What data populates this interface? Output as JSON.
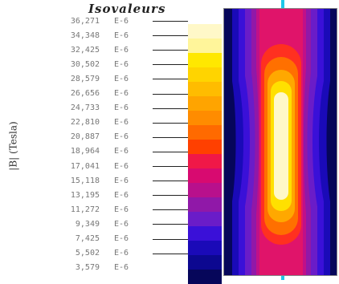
{
  "title": "Isovaleurs",
  "axis_label": "|B| (Tesla)",
  "legend": [
    {
      "value": "36,271",
      "exp": "E-6"
    },
    {
      "value": "34,348",
      "exp": "E-6"
    },
    {
      "value": "32,425",
      "exp": "E-6"
    },
    {
      "value": "30,502",
      "exp": "E-6"
    },
    {
      "value": "28,579",
      "exp": "E-6"
    },
    {
      "value": "26,656",
      "exp": "E-6"
    },
    {
      "value": "24,733",
      "exp": "E-6"
    },
    {
      "value": "22,810",
      "exp": "E-6"
    },
    {
      "value": "20,887",
      "exp": "E-6"
    },
    {
      "value": "18,964",
      "exp": "E-6"
    },
    {
      "value": "17,041",
      "exp": "E-6"
    },
    {
      "value": "15,118",
      "exp": "E-6"
    },
    {
      "value": "13,195",
      "exp": "E-6"
    },
    {
      "value": "11,272",
      "exp": "E-6"
    },
    {
      "value": "9,349",
      "exp": "E-6"
    },
    {
      "value": "7,425",
      "exp": "E-6"
    },
    {
      "value": "5,502",
      "exp": "E-6"
    },
    {
      "value": "3,579",
      "exp": "E-6"
    }
  ],
  "colors": {
    "scale": [
      "#fff8c8",
      "#fff59a",
      "#ffe800",
      "#ffd400",
      "#ffbc00",
      "#ffa400",
      "#ff8c00",
      "#ff6a00",
      "#ff4000",
      "#f01848",
      "#d80a70",
      "#b8108c",
      "#9018a8",
      "#6a1cc8",
      "#3a10d8",
      "#1a0ab8",
      "#0c0890",
      "#06065a"
    ],
    "accent_marker": "#1ec8e8"
  }
}
